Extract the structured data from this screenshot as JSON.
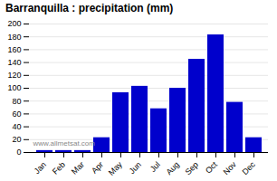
{
  "chart_data": {
    "type": "bar",
    "title": "Barranquilla : precipitation (mm)",
    "categories": [
      "Jan",
      "Feb",
      "Mar",
      "Apr",
      "May",
      "Jun",
      "Jul",
      "Aug",
      "Sep",
      "Oct",
      "Nov",
      "Dec"
    ],
    "values": [
      3,
      3,
      3,
      23,
      93,
      103,
      68,
      100,
      145,
      183,
      78,
      23
    ],
    "color": "#0000CC",
    "ylim": [
      0,
      200
    ],
    "yticks": [
      0,
      20,
      40,
      60,
      80,
      100,
      120,
      140,
      160,
      180,
      200
    ],
    "grid": true,
    "annotations": [
      "www.allmetsat.com"
    ]
  }
}
